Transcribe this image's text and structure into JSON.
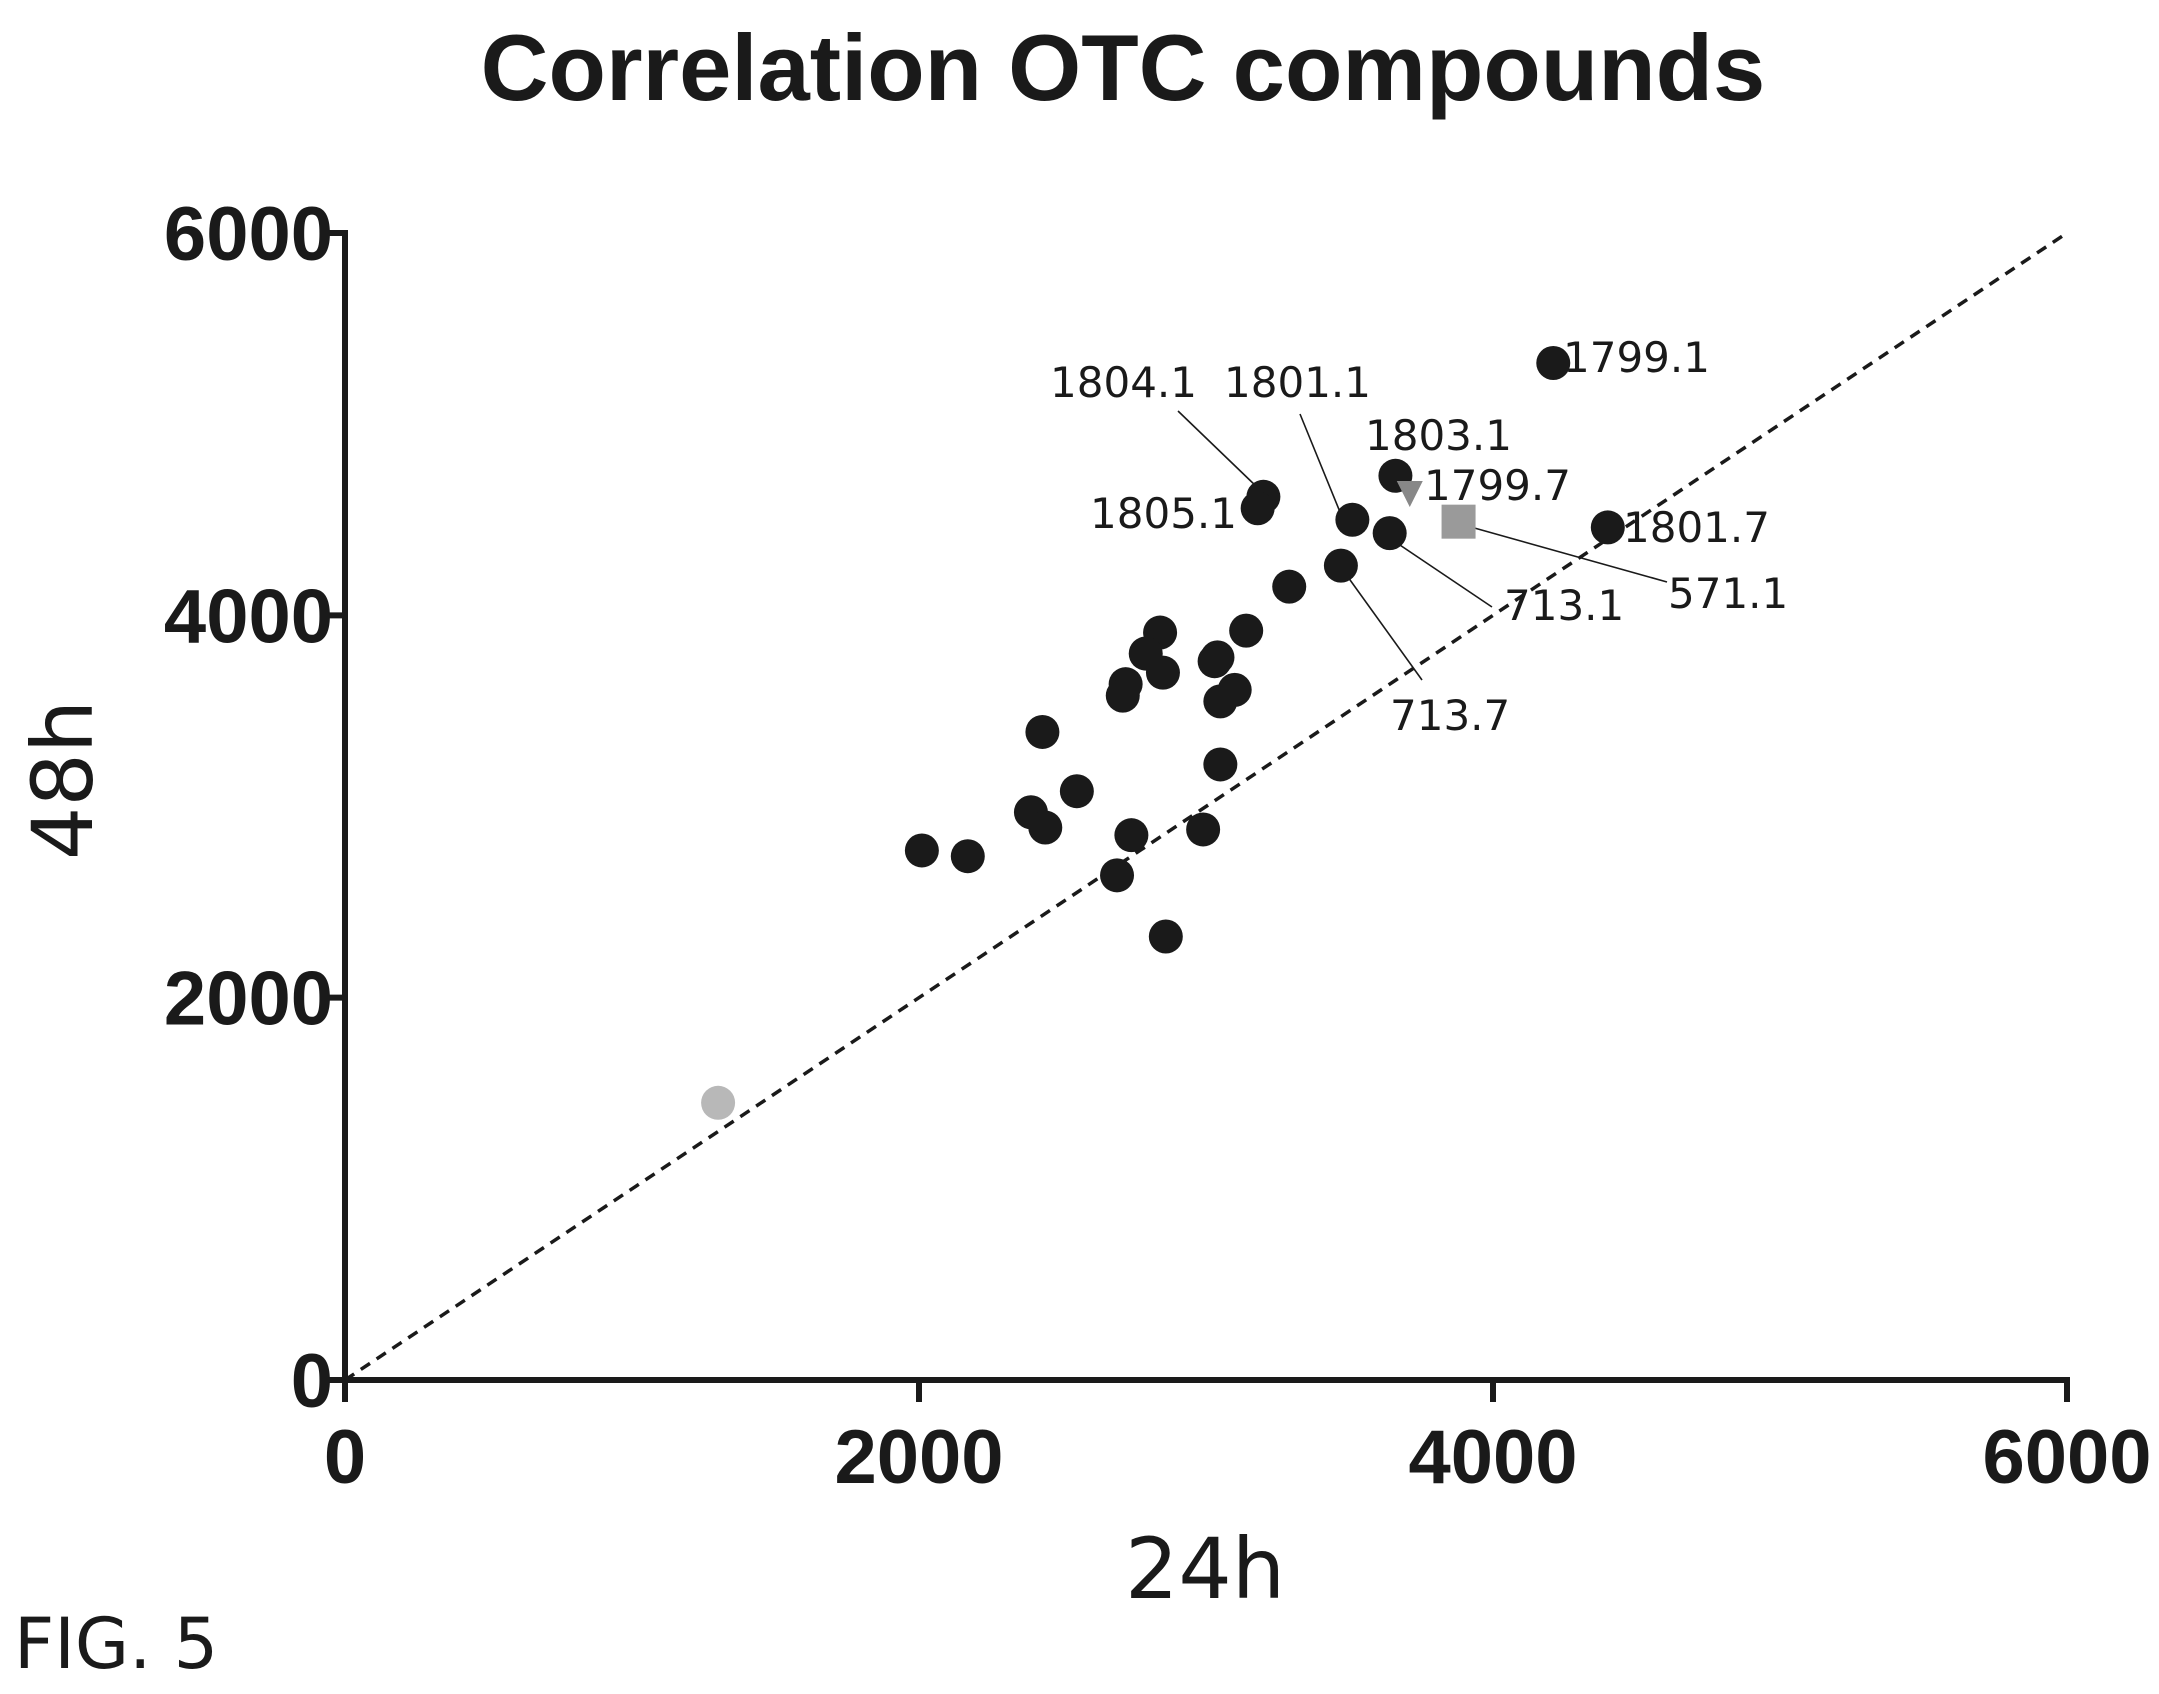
{
  "figure_label": "FIG. 5",
  "chart_data": {
    "type": "scatter",
    "title": "Correlation OTC compounds",
    "xlabel": "24h",
    "ylabel": "48h",
    "xlim": [
      0,
      6000
    ],
    "ylim": [
      0,
      6000
    ],
    "xticks": [
      0,
      2000,
      4000,
      6000
    ],
    "yticks": [
      0,
      2000,
      4000,
      6000
    ],
    "grid": false,
    "legend": "none",
    "reference_line": {
      "style": "dashed",
      "from": [
        0,
        0
      ],
      "to": [
        6000,
        6000
      ],
      "color": "#1a1a1a"
    },
    "colors": {
      "main": "#1a1a1a",
      "gray_square": "#9a9a9a",
      "gray_triangle": "#888888",
      "light_circle": "#b8b8b8"
    },
    "series": [
      {
        "marker": "circle",
        "color": "#1a1a1a",
        "points": [
          {
            "x": 4210,
            "y": 5320,
            "label": "1799.1"
          },
          {
            "x": 3200,
            "y": 4620,
            "label": "1804.1"
          },
          {
            "x": 3180,
            "y": 4560,
            "label": "1805.1"
          },
          {
            "x": 3510,
            "y": 4500,
            "label": "1801.1"
          },
          {
            "x": 3660,
            "y": 4730,
            "label": "1803.1"
          },
          {
            "x": 4400,
            "y": 4460,
            "label": "1801.7"
          },
          {
            "x": 3640,
            "y": 4430,
            "label": "713.1"
          },
          {
            "x": 3470,
            "y": 4260,
            "label": "713.7"
          },
          {
            "x": 3290,
            "y": 4150
          },
          {
            "x": 3140,
            "y": 3920
          },
          {
            "x": 2840,
            "y": 3910
          },
          {
            "x": 2790,
            "y": 3800
          },
          {
            "x": 3040,
            "y": 3780
          },
          {
            "x": 3030,
            "y": 3760
          },
          {
            "x": 2850,
            "y": 3700
          },
          {
            "x": 2720,
            "y": 3640
          },
          {
            "x": 2710,
            "y": 3580
          },
          {
            "x": 3100,
            "y": 3610
          },
          {
            "x": 3050,
            "y": 3550
          },
          {
            "x": 2430,
            "y": 3390
          },
          {
            "x": 3050,
            "y": 3220
          },
          {
            "x": 2550,
            "y": 3080
          },
          {
            "x": 2390,
            "y": 2970
          },
          {
            "x": 2440,
            "y": 2890
          },
          {
            "x": 2740,
            "y": 2850
          },
          {
            "x": 2990,
            "y": 2880
          },
          {
            "x": 2010,
            "y": 2770
          },
          {
            "x": 2170,
            "y": 2740
          },
          {
            "x": 2690,
            "y": 2640
          },
          {
            "x": 2860,
            "y": 2320
          }
        ]
      },
      {
        "marker": "square",
        "color": "#9a9a9a",
        "points": [
          {
            "x": 3880,
            "y": 4490,
            "label": "571.1"
          }
        ]
      },
      {
        "marker": "triangle-down",
        "color": "#888888",
        "points": [
          {
            "x": 3710,
            "y": 4640,
            "label": "1799.7"
          }
        ]
      },
      {
        "marker": "circle",
        "color": "#b8b8b8",
        "points": [
          {
            "x": 1300,
            "y": 1450
          }
        ]
      }
    ],
    "annotations": [
      {
        "text": "1799.1"
      },
      {
        "text": "1804.1"
      },
      {
        "text": "1801.1"
      },
      {
        "text": "1803.1"
      },
      {
        "text": "1799.7"
      },
      {
        "text": "1805.1"
      },
      {
        "text": "1801.7"
      },
      {
        "text": "571.1"
      },
      {
        "text": "713.1"
      },
      {
        "text": "713.7"
      }
    ]
  }
}
